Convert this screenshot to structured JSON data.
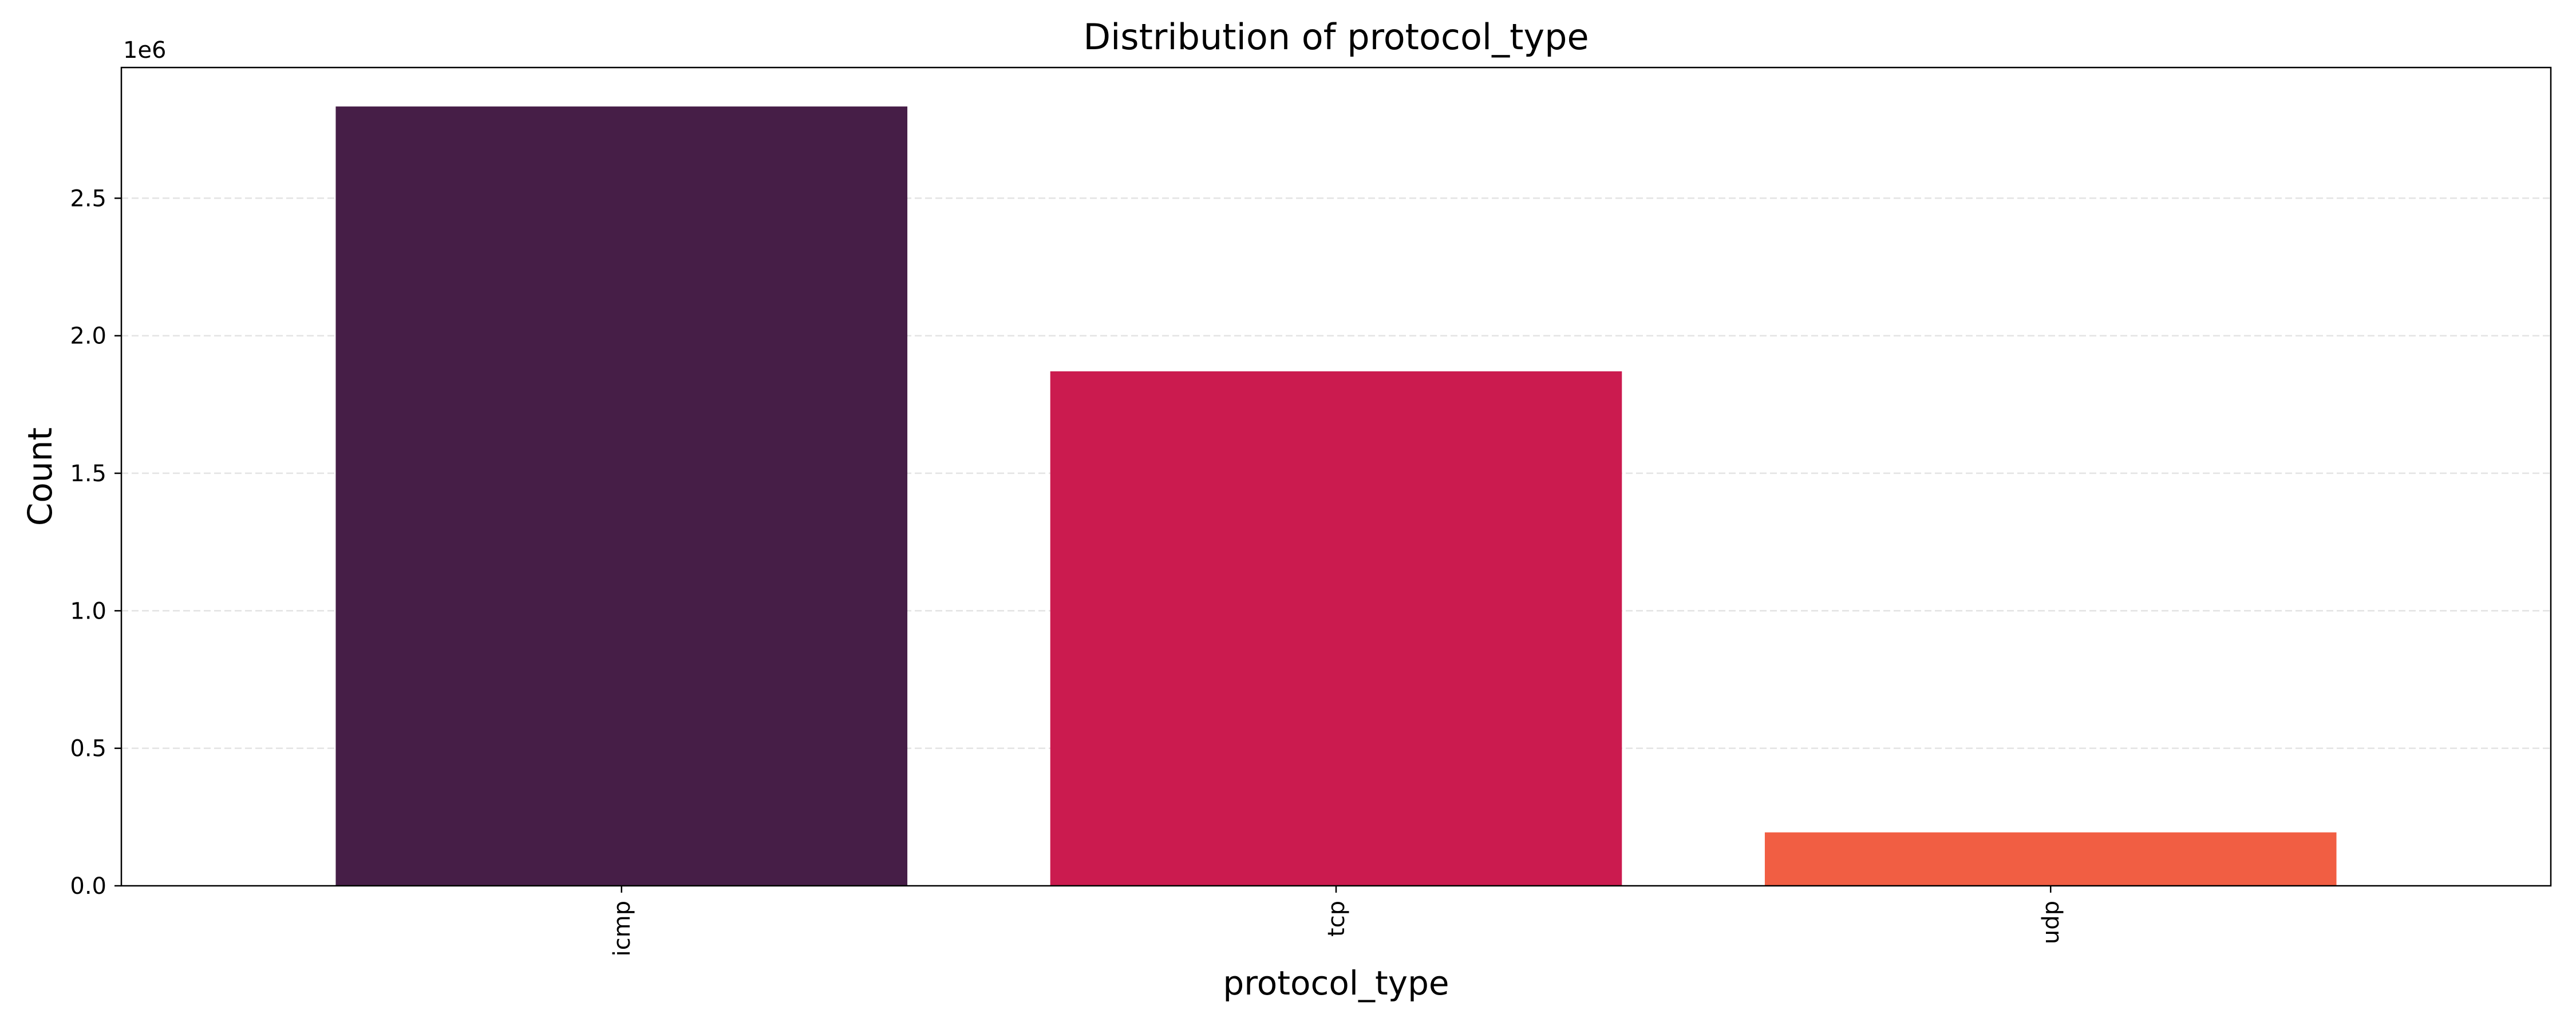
{
  "chart_data": {
    "type": "bar",
    "title": "Distribution of protocol_type",
    "xlabel": "protocol_type",
    "ylabel": "Count",
    "offset_label": "1e6",
    "categories": [
      "icmp",
      "tcp",
      "udp"
    ],
    "values": [
      2833545,
      1870598,
      194288
    ],
    "colors": [
      "#461e47",
      "#cb1b4f",
      "#f15e43"
    ],
    "ylim": [
      0,
      2975222
    ],
    "yticks": [
      0,
      500000,
      1000000,
      1500000,
      2000000,
      2500000
    ],
    "ytick_labels": [
      "0.0",
      "0.5",
      "1.0",
      "1.5",
      "2.0",
      "2.5"
    ],
    "grid": "y-dashed",
    "legend": "none"
  }
}
